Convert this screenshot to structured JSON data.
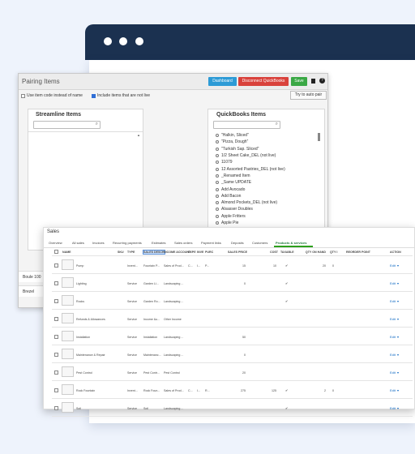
{
  "pairing": {
    "title": "Pairing Items",
    "buttons": [
      "Dashboard",
      "Disconnect QuickBooks",
      "Save"
    ],
    "options": [
      "Use item code instead of name",
      "Include items that are not live"
    ],
    "auto_pair": "Try to auto pair",
    "streamline": {
      "title": "Streamline Items",
      "rows": [
        "Boule 100",
        "Brezel"
      ]
    },
    "quickbooks": {
      "title": "QuickBooks Items",
      "items": [
        "\"Halkin, Sliced\"",
        "\"Pizza, Dough\"",
        "\"Turkish Sap. Sliced\"",
        "1/2 Sheet Cake_DEL (not live)",
        "11079",
        "12 Assorted Pastries_DEL (not live)",
        "_Renamed Item",
        "_Same UPDATE",
        "Add Avocado",
        "Add Bacon",
        "Almond Pockets_DEL (not live)",
        "Alsasser Doubles",
        "Apple Fritters",
        "Apple Pie"
      ]
    }
  },
  "sales": {
    "title": "Sales",
    "tabs": [
      "Overview",
      "All sales",
      "Invoices",
      "Recurring payments",
      "Estimates",
      "Sales orders",
      "Payment links",
      "Deposits",
      "Customers",
      "Products & services"
    ],
    "active_tab": 9,
    "columns": [
      "NAME",
      "SKU",
      "TYPE",
      "SALES DESCR",
      "INCOME ACCOUNT",
      "EXPE",
      "INVE",
      "PURC",
      "SALES PRICE",
      "COST",
      "TAXABLE",
      "QTY ON HAND",
      "QTY I",
      "REORDER POINT",
      "ACTION"
    ],
    "rows": [
      {
        "name": "Pump",
        "type": "Invent...",
        "sales_description": "Fountain P...",
        "income_account": "Sales of Prod...",
        "expense_account": "C...",
        "inventory_account": "I...",
        "purchase_description": "P...",
        "sales_price": 15,
        "cost": 10,
        "taxable": true,
        "qty_on_hand": 20,
        "qty_incoming": 0,
        "action": "Edit"
      },
      {
        "name": "Lighting",
        "type": "Service",
        "sales_description": "Garden Li...",
        "income_account": "Landscaping ...",
        "sales_price": 0,
        "taxable": true,
        "action": "Edit"
      },
      {
        "name": "Rocks",
        "type": "Service",
        "sales_description": "Garden Ro...",
        "income_account": "Landscaping ...",
        "taxable": true,
        "action": "Edit"
      },
      {
        "name": "Refunds & Allowances",
        "type": "Service",
        "sales_description": "Income &u...",
        "income_account": "Other Income",
        "action": "Edit"
      },
      {
        "name": "Installation",
        "type": "Service",
        "sales_description": "Installation",
        "income_account": "Landscaping ...",
        "sales_price": 50,
        "action": "Edit"
      },
      {
        "name": "Maintenance & Repair",
        "type": "Service",
        "sales_description": "Maintenanc...",
        "income_account": "Landscaping ...",
        "sales_price": 0,
        "action": "Edit"
      },
      {
        "name": "Pest Control",
        "type": "Service",
        "sales_description": "Pest Contr...",
        "income_account": "Pest Control",
        "sales_price": 20,
        "action": "Edit"
      },
      {
        "name": "Rock Fountain",
        "type": "Invent...",
        "sales_description": "Rock Foun...",
        "income_account": "Sales of Prod...",
        "expense_account": "C...",
        "inventory_account": "I...",
        "purchase_description": "R...",
        "sales_price": 275,
        "cost": 125,
        "taxable": true,
        "qty_on_hand": 2,
        "qty_incoming": 0,
        "action": "Edit"
      },
      {
        "name": "Soil",
        "type": "Service",
        "sales_description": "Soil",
        "income_account": "Landscaping ...",
        "taxable": true,
        "action": "Edit"
      }
    ]
  }
}
